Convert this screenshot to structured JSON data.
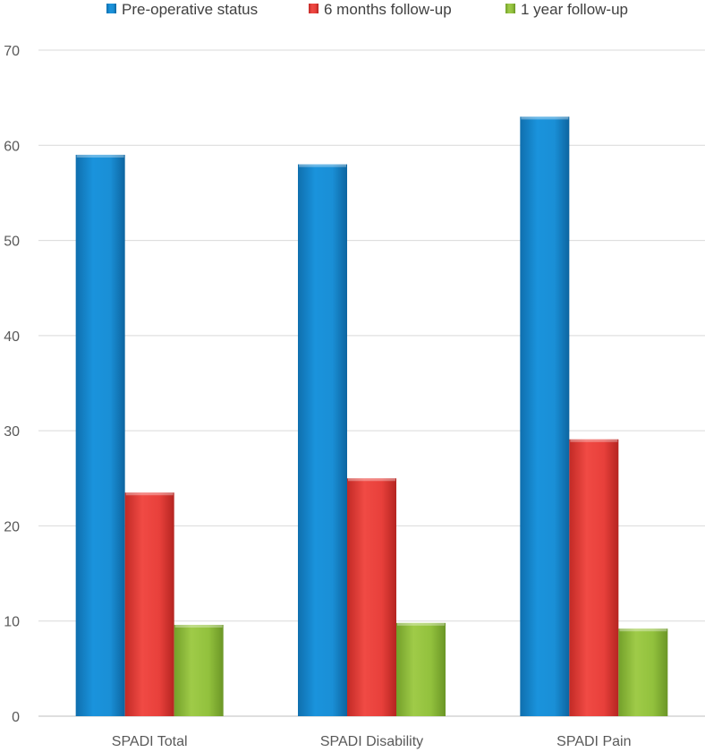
{
  "chart_data": {
    "type": "bar",
    "categories": [
      "SPADI Total",
      "SPADI Disability",
      "SPADI Pain"
    ],
    "series": [
      {
        "name": "Pre-operative status",
        "values": [
          59,
          58,
          63
        ],
        "color": "#1a8fd6"
      },
      {
        "name": "6 months follow-up",
        "values": [
          23.5,
          25,
          29.1
        ],
        "color": "#e8403b"
      },
      {
        "name": "1 year follow-up",
        "values": [
          9.6,
          9.8,
          9.2
        ],
        "color": "#92c13d"
      }
    ],
    "title": "",
    "xlabel": "",
    "ylabel": "",
    "ylim": [
      0,
      70
    ],
    "yticks": [
      0,
      10,
      20,
      30,
      40,
      50,
      60,
      70
    ],
    "grid": true,
    "legend_position": "top"
  }
}
